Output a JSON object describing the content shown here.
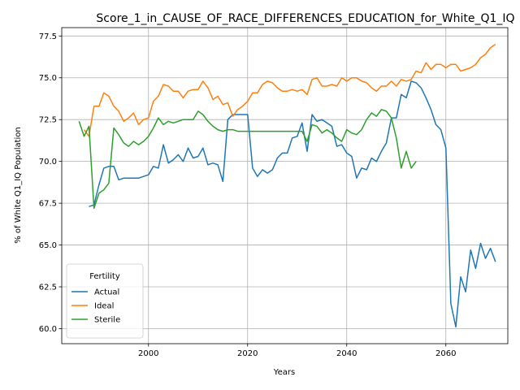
{
  "chart_data": {
    "type": "line",
    "title": "Score_1_in_CAUSE_OF_RACE_DIFFERENCES_EDUCATION_for_White_Q1_IQ",
    "xlabel": "Years",
    "ylabel": "% of White Q1_IQ Population",
    "xlim": [
      1982.5,
      2072.5
    ],
    "ylim": [
      59.1,
      78.0
    ],
    "xticks": [
      2000,
      2020,
      2040,
      2060
    ],
    "yticks": [
      60.0,
      62.5,
      65.0,
      67.5,
      70.0,
      72.5,
      75.0,
      77.5
    ],
    "grid": true,
    "legend": {
      "title": "Fertility",
      "placement": "bottom-left"
    },
    "series": [
      {
        "name": "Actual",
        "color": "#1f77b4",
        "points": [
          [
            1988,
            67.3
          ],
          [
            1989,
            67.4
          ],
          [
            1990,
            68.6
          ],
          [
            1991,
            69.6
          ],
          [
            1992,
            69.7
          ],
          [
            1993,
            69.7
          ],
          [
            1994,
            68.9
          ],
          [
            1995,
            69.0
          ],
          [
            1996,
            69.0
          ],
          [
            1997,
            69.0
          ],
          [
            1998,
            69.0
          ],
          [
            1999,
            69.1
          ],
          [
            2000,
            69.2
          ],
          [
            2001,
            69.7
          ],
          [
            2002,
            69.6
          ],
          [
            2003,
            71.0
          ],
          [
            2004,
            69.9
          ],
          [
            2005,
            70.1
          ],
          [
            2006,
            70.4
          ],
          [
            2007,
            70.0
          ],
          [
            2008,
            70.8
          ],
          [
            2009,
            70.2
          ],
          [
            2010,
            70.3
          ],
          [
            2011,
            70.8
          ],
          [
            2012,
            69.8
          ],
          [
            2013,
            69.9
          ],
          [
            2014,
            69.8
          ],
          [
            2015,
            68.8
          ],
          [
            2016,
            72.5
          ],
          [
            2017,
            72.8
          ],
          [
            2018,
            72.8
          ],
          [
            2019,
            72.8
          ],
          [
            2020,
            72.8
          ],
          [
            2021,
            69.6
          ],
          [
            2022,
            69.1
          ],
          [
            2023,
            69.5
          ],
          [
            2024,
            69.3
          ],
          [
            2025,
            69.5
          ],
          [
            2026,
            70.2
          ],
          [
            2027,
            70.5
          ],
          [
            2028,
            70.5
          ],
          [
            2029,
            71.4
          ],
          [
            2030,
            71.5
          ],
          [
            2031,
            72.3
          ],
          [
            2032,
            70.6
          ],
          [
            2033,
            72.8
          ],
          [
            2034,
            72.4
          ],
          [
            2035,
            72.5
          ],
          [
            2036,
            72.3
          ],
          [
            2037,
            72.1
          ],
          [
            2038,
            70.9
          ],
          [
            2039,
            71.0
          ],
          [
            2040,
            70.5
          ],
          [
            2041,
            70.3
          ],
          [
            2042,
            69.0
          ],
          [
            2043,
            69.6
          ],
          [
            2044,
            69.5
          ],
          [
            2045,
            70.2
          ],
          [
            2046,
            70.0
          ],
          [
            2047,
            70.6
          ],
          [
            2048,
            71.1
          ],
          [
            2049,
            72.6
          ],
          [
            2050,
            72.6
          ],
          [
            2051,
            74.0
          ],
          [
            2052,
            73.8
          ],
          [
            2053,
            74.8
          ],
          [
            2054,
            74.7
          ],
          [
            2055,
            74.4
          ],
          [
            2056,
            73.8
          ],
          [
            2057,
            73.1
          ],
          [
            2058,
            72.2
          ],
          [
            2059,
            71.9
          ],
          [
            2060,
            70.8
          ],
          [
            2061,
            61.5
          ],
          [
            2062,
            60.1
          ],
          [
            2063,
            63.1
          ],
          [
            2064,
            62.2
          ],
          [
            2065,
            64.7
          ],
          [
            2066,
            63.6
          ],
          [
            2067,
            65.1
          ],
          [
            2068,
            64.2
          ],
          [
            2069,
            64.8
          ],
          [
            2070,
            64.0
          ]
        ]
      },
      {
        "name": "Ideal",
        "color": "#ff7f0e",
        "points": [
          [
            1987,
            71.9
          ],
          [
            1988,
            71.5
          ],
          [
            1989,
            73.3
          ],
          [
            1990,
            73.3
          ],
          [
            1991,
            74.1
          ],
          [
            1992,
            73.9
          ],
          [
            1993,
            73.3
          ],
          [
            1994,
            73.0
          ],
          [
            1995,
            72.4
          ],
          [
            1996,
            72.6
          ],
          [
            1997,
            72.9
          ],
          [
            1998,
            72.2
          ],
          [
            1999,
            72.5
          ],
          [
            2000,
            72.6
          ],
          [
            2001,
            73.6
          ],
          [
            2002,
            73.9
          ],
          [
            2003,
            74.6
          ],
          [
            2004,
            74.5
          ],
          [
            2005,
            74.2
          ],
          [
            2006,
            74.2
          ],
          [
            2007,
            73.8
          ],
          [
            2008,
            74.2
          ],
          [
            2009,
            74.3
          ],
          [
            2010,
            74.3
          ],
          [
            2011,
            74.8
          ],
          [
            2012,
            74.4
          ],
          [
            2013,
            73.7
          ],
          [
            2014,
            73.9
          ],
          [
            2015,
            73.4
          ],
          [
            2016,
            73.5
          ],
          [
            2017,
            72.7
          ],
          [
            2018,
            73.1
          ],
          [
            2019,
            73.3
          ],
          [
            2020,
            73.6
          ],
          [
            2021,
            74.1
          ],
          [
            2022,
            74.1
          ],
          [
            2023,
            74.6
          ],
          [
            2024,
            74.8
          ],
          [
            2025,
            74.7
          ],
          [
            2026,
            74.4
          ],
          [
            2027,
            74.2
          ],
          [
            2028,
            74.2
          ],
          [
            2029,
            74.3
          ],
          [
            2030,
            74.2
          ],
          [
            2031,
            74.3
          ],
          [
            2032,
            74.0
          ],
          [
            2033,
            74.9
          ],
          [
            2034,
            75.0
          ],
          [
            2035,
            74.5
          ],
          [
            2036,
            74.5
          ],
          [
            2037,
            74.6
          ],
          [
            2038,
            74.5
          ],
          [
            2039,
            75.0
          ],
          [
            2040,
            74.8
          ],
          [
            2041,
            75.0
          ],
          [
            2042,
            75.0
          ],
          [
            2043,
            74.8
          ],
          [
            2044,
            74.7
          ],
          [
            2045,
            74.4
          ],
          [
            2046,
            74.2
          ],
          [
            2047,
            74.5
          ],
          [
            2048,
            74.5
          ],
          [
            2049,
            74.8
          ],
          [
            2050,
            74.5
          ],
          [
            2051,
            74.9
          ],
          [
            2052,
            74.8
          ],
          [
            2053,
            74.9
          ],
          [
            2054,
            75.4
          ],
          [
            2055,
            75.3
          ],
          [
            2056,
            75.9
          ],
          [
            2057,
            75.5
          ],
          [
            2058,
            75.8
          ],
          [
            2059,
            75.8
          ],
          [
            2060,
            75.6
          ],
          [
            2061,
            75.8
          ],
          [
            2062,
            75.8
          ],
          [
            2063,
            75.4
          ],
          [
            2064,
            75.5
          ],
          [
            2065,
            75.6
          ],
          [
            2066,
            75.8
          ],
          [
            2067,
            76.2
          ],
          [
            2068,
            76.4
          ],
          [
            2069,
            76.8
          ],
          [
            2070,
            77.0
          ]
        ]
      },
      {
        "name": "Sterile",
        "color": "#2ca02c",
        "points": [
          [
            1986,
            72.4
          ],
          [
            1987,
            71.5
          ],
          [
            1988,
            72.1
          ],
          [
            1989,
            67.2
          ],
          [
            1990,
            68.1
          ],
          [
            1991,
            68.3
          ],
          [
            1992,
            68.7
          ],
          [
            1993,
            72.0
          ],
          [
            1994,
            71.6
          ],
          [
            1995,
            71.1
          ],
          [
            1996,
            70.9
          ],
          [
            1997,
            71.2
          ],
          [
            1998,
            71.0
          ],
          [
            1999,
            71.2
          ],
          [
            2000,
            71.5
          ],
          [
            2001,
            72.0
          ],
          [
            2002,
            72.6
          ],
          [
            2003,
            72.2
          ],
          [
            2004,
            72.4
          ],
          [
            2005,
            72.3
          ],
          [
            2006,
            72.4
          ],
          [
            2007,
            72.5
          ],
          [
            2008,
            72.5
          ],
          [
            2009,
            72.5
          ],
          [
            2010,
            73.0
          ],
          [
            2011,
            72.8
          ],
          [
            2012,
            72.4
          ],
          [
            2013,
            72.1
          ],
          [
            2014,
            71.9
          ],
          [
            2015,
            71.8
          ],
          [
            2016,
            71.9
          ],
          [
            2017,
            71.9
          ],
          [
            2018,
            71.8
          ],
          [
            2019,
            71.8
          ],
          [
            2020,
            71.8
          ],
          [
            2021,
            71.8
          ],
          [
            2022,
            71.8
          ],
          [
            2023,
            71.8
          ],
          [
            2024,
            71.8
          ],
          [
            2025,
            71.8
          ],
          [
            2026,
            71.8
          ],
          [
            2027,
            71.8
          ],
          [
            2028,
            71.8
          ],
          [
            2029,
            71.8
          ],
          [
            2030,
            71.8
          ],
          [
            2031,
            71.8
          ],
          [
            2032,
            71.2
          ],
          [
            2033,
            72.2
          ],
          [
            2034,
            72.1
          ],
          [
            2035,
            71.7
          ],
          [
            2036,
            71.9
          ],
          [
            2037,
            71.7
          ],
          [
            2038,
            71.4
          ],
          [
            2039,
            71.2
          ],
          [
            2040,
            71.9
          ],
          [
            2041,
            71.7
          ],
          [
            2042,
            71.6
          ],
          [
            2043,
            71.9
          ],
          [
            2044,
            72.5
          ],
          [
            2045,
            72.9
          ],
          [
            2046,
            72.7
          ],
          [
            2047,
            73.1
          ],
          [
            2048,
            73.0
          ],
          [
            2049,
            72.6
          ],
          [
            2050,
            71.4
          ],
          [
            2051,
            69.6
          ],
          [
            2052,
            70.6
          ],
          [
            2053,
            69.6
          ],
          [
            2054,
            70.0
          ]
        ]
      }
    ]
  }
}
